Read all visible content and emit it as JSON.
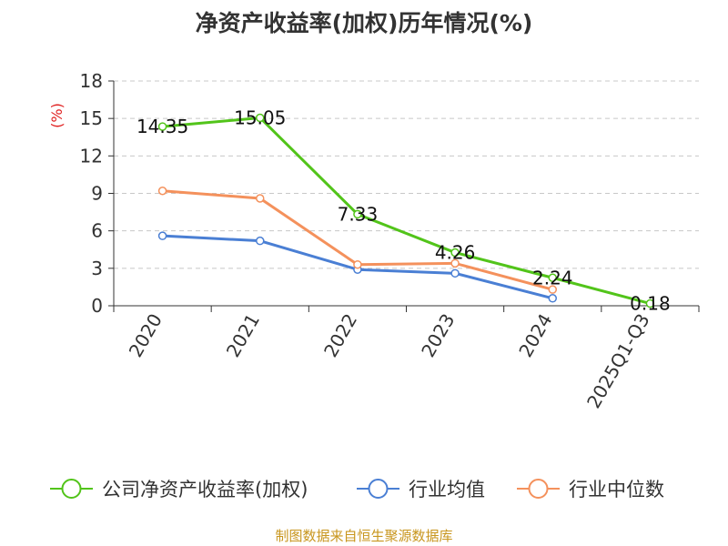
{
  "chart_data": {
    "type": "line",
    "title": "净资产收益率(加权)历年情况(%)",
    "ylabel": "(%)",
    "xlabel": "",
    "categories": [
      "2020",
      "2021",
      "2022",
      "2023",
      "2024",
      "2025Q1-Q3"
    ],
    "y_ticks": [
      0,
      3,
      6,
      9,
      12,
      15,
      18
    ],
    "ylim": [
      0,
      18
    ],
    "grid": true,
    "legend_position": "bottom",
    "series": [
      {
        "name": "公司净资产收益率(加权)",
        "color": "#52c41a",
        "values": [
          14.35,
          15.05,
          7.33,
          4.26,
          2.24,
          0.18
        ],
        "labels": [
          "14.35",
          "15.05",
          "7.33",
          "4.26",
          "2.24",
          "0.18"
        ]
      },
      {
        "name": "行业均值",
        "color": "#4a7fd4",
        "values": [
          5.6,
          5.2,
          2.9,
          2.6,
          0.6,
          null
        ]
      },
      {
        "name": "行业中位数",
        "color": "#f4915c",
        "values": [
          9.2,
          8.6,
          3.3,
          3.4,
          1.3,
          null
        ]
      }
    ]
  },
  "footer": {
    "source": "制图数据来自恒生聚源数据库",
    "color": "#c8961e"
  },
  "colors": {
    "ylabel": "#e02020",
    "grid": "#c8c8c8",
    "axis": "#333333"
  }
}
